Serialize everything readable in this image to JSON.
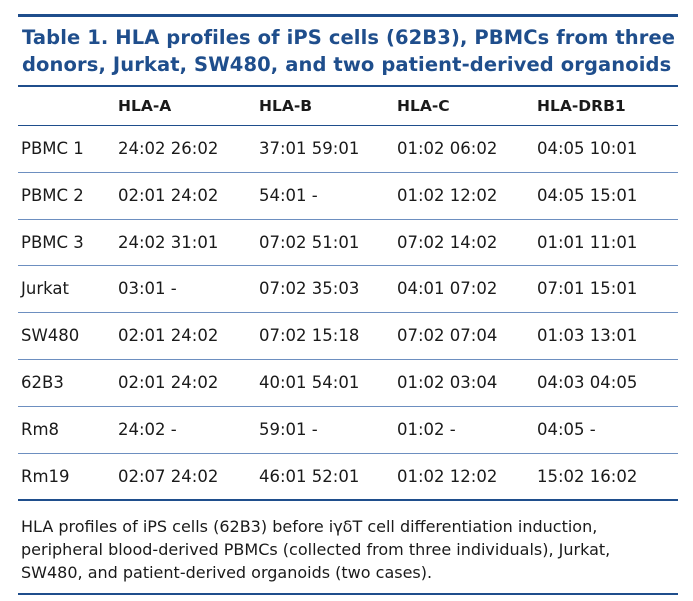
{
  "table": {
    "title_line1": "Table 1.  HLA profiles of iPS cells (62B3), PBMCs from three",
    "title_line2": "donors, Jurkat, SW480, and two patient-derived organoids",
    "headers": [
      "HLA-A",
      "HLA-B",
      "HLA-C",
      "HLA-DRB1"
    ],
    "rows": [
      {
        "label": "PBMC 1",
        "values": [
          "24:02 26:02",
          "37:01 59:01",
          "01:02 06:02",
          "04:05 10:01"
        ]
      },
      {
        "label": "PBMC 2",
        "values": [
          "02:01 24:02",
          "54:01 -",
          "01:02 12:02",
          "04:05 15:01"
        ]
      },
      {
        "label": "PBMC 3",
        "values": [
          "24:02 31:01",
          "07:02 51:01",
          "07:02 14:02",
          "01:01 11:01"
        ]
      },
      {
        "label": "Jurkat",
        "values": [
          "03:01 -",
          "07:02 35:03",
          "04:01 07:02",
          "07:01 15:01"
        ]
      },
      {
        "label": "SW480",
        "values": [
          "02:01 24:02",
          "07:02 15:18",
          "07:02 07:04",
          "01:03 13:01"
        ]
      },
      {
        "label": "62B3",
        "values": [
          "02:01 24:02",
          "40:01 54:01",
          "01:02 03:04",
          "04:03 04:05"
        ]
      },
      {
        "label": "Rm8",
        "values": [
          "24:02 -",
          "59:01 -",
          "01:02 -",
          "04:05 -"
        ]
      },
      {
        "label": "Rm19",
        "values": [
          "02:07 24:02",
          "46:01 52:01",
          "01:02 12:02",
          "15:02 16:02"
        ]
      }
    ],
    "footnote_line1": "HLA profiles of iPS cells (62B3) before iγδT cell differentiation induction,",
    "footnote_line2": "peripheral blood-derived PBMCs (collected from three individuals), Jurkat,",
    "footnote_line3": "SW480, and patient-derived organoids (two cases).",
    "colors": {
      "accent": "#1f4e8c",
      "row_rule": "#6d8fc0",
      "text": "#1a1a1a"
    }
  }
}
